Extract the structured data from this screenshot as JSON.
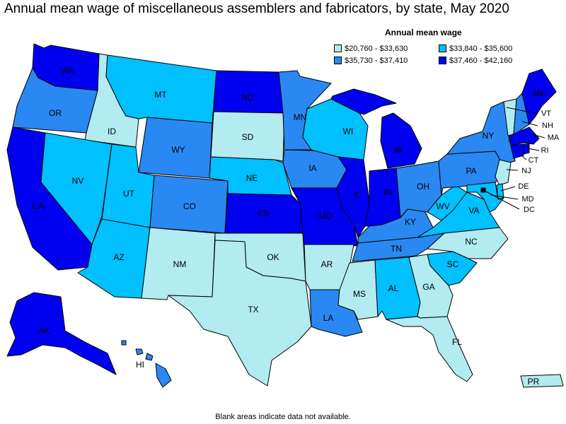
{
  "title": "Annual mean wage of miscellaneous assemblers and fabricators, by state, May 2020",
  "legend": {
    "title": "Annual mean wage",
    "bins": [
      {
        "id": "b1",
        "label": "$20,760 - $33,630",
        "color": "#b2ebf0"
      },
      {
        "id": "b2",
        "label": "$33,840 - $35,600",
        "color": "#00c0ff"
      },
      {
        "id": "b3",
        "label": "$35,730 - $37,410",
        "color": "#2a88f2"
      },
      {
        "id": "b4",
        "label": "$37,460 - $42,160",
        "color": "#0000f0"
      }
    ]
  },
  "footnote": "Blank areas indicate data not available.",
  "states": {
    "WA": "b4",
    "OR": "b3",
    "CA": "b4",
    "ID": "b1",
    "NV": "b2",
    "MT": "b2",
    "WY": "b3",
    "UT": "b2",
    "AZ": "b2",
    "CO": "b3",
    "NM": "b1",
    "ND": "b4",
    "SD": "b1",
    "NE": "b2",
    "KS": "b4",
    "OK": "b1",
    "TX": "b1",
    "MN": "b3",
    "IA": "b3",
    "MO": "b4",
    "AR": "b1",
    "LA": "b3",
    "WI": "b2",
    "IL": "b4",
    "MS": "b1",
    "MI": "b4",
    "IN": "b4",
    "KY": "b3",
    "TN": "b3",
    "AL": "b2",
    "OH": "b3",
    "WV": "b2",
    "VA": "b2",
    "NC": "b1",
    "SC": "b2",
    "GA": "b1",
    "FL": "b1",
    "PA": "b3",
    "NY": "b3",
    "VT": "b1",
    "NH": "b3",
    "ME": "b4",
    "MA": "b4",
    "CT": "b4",
    "RI": "b4",
    "NJ": "b1",
    "DE": "b2",
    "MD": "b2",
    "DC": "b2",
    "AK": "b4",
    "HI": "b3",
    "PR": "b1"
  }
}
